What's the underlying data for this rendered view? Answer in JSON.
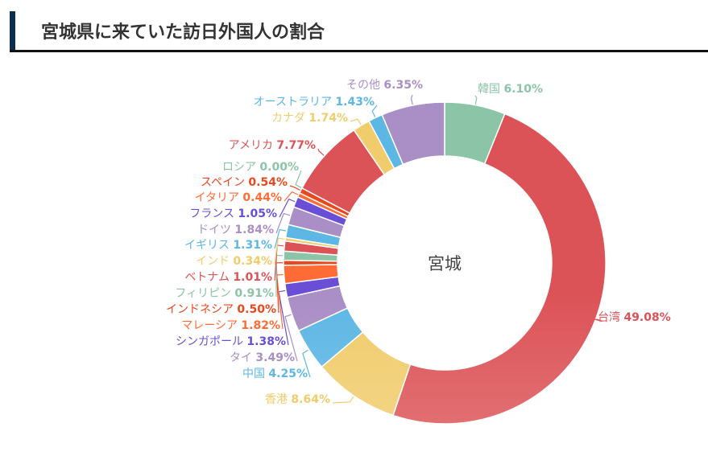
{
  "header": {
    "title": "宮城県に来ていた訪日外国人の割合"
  },
  "chart_data": {
    "type": "pie",
    "variant": "donut",
    "title": "宮城県に来ていた訪日外国人の割合",
    "center_label": "宮城",
    "unit": "%",
    "categories": [
      "韓国",
      "台湾",
      "香港",
      "中国",
      "タイ",
      "シンガポール",
      "マレーシア",
      "インドネシア",
      "フィリピン",
      "ベトナム",
      "インド",
      "イギリス",
      "ドイツ",
      "フランス",
      "イタリア",
      "スペイン",
      "ロシア",
      "アメリカ",
      "カナダ",
      "オーストラリア",
      "その他"
    ],
    "values": [
      6.1,
      49.08,
      8.64,
      4.25,
      3.49,
      1.38,
      1.82,
      0.5,
      0.91,
      1.01,
      0.34,
      1.31,
      1.84,
      1.05,
      0.44,
      0.54,
      0.0,
      7.77,
      1.74,
      1.43,
      6.35
    ],
    "value_labels": [
      "6.10%",
      "49.08%",
      "8.64%",
      "4.25%",
      "3.49%",
      "1.38%",
      "1.82%",
      "0.50%",
      "0.91%",
      "1.01%",
      "0.34%",
      "1.31%",
      "1.84%",
      "1.05%",
      "0.44%",
      "0.54%",
      "0.00%",
      "7.77%",
      "1.74%",
      "1.43%",
      "6.35%"
    ],
    "colors": [
      "#8cc4a8",
      "#dc5357",
      "#f0cc6c",
      "#5db7e4",
      "#aa8ec6",
      "#6a4fd6",
      "#ff6b35",
      "#e8481f",
      "#8cc4a8",
      "#dc5357",
      "#f0cc6c",
      "#5db7e4",
      "#aa8ec6",
      "#6a4fd6",
      "#ff6b35",
      "#e8481f",
      "#8cc4a8",
      "#dc5357",
      "#f0cc6c",
      "#5db7e4",
      "#aa8ec6"
    ],
    "start_angle": "top",
    "direction": "clockwise",
    "legend": "none"
  }
}
